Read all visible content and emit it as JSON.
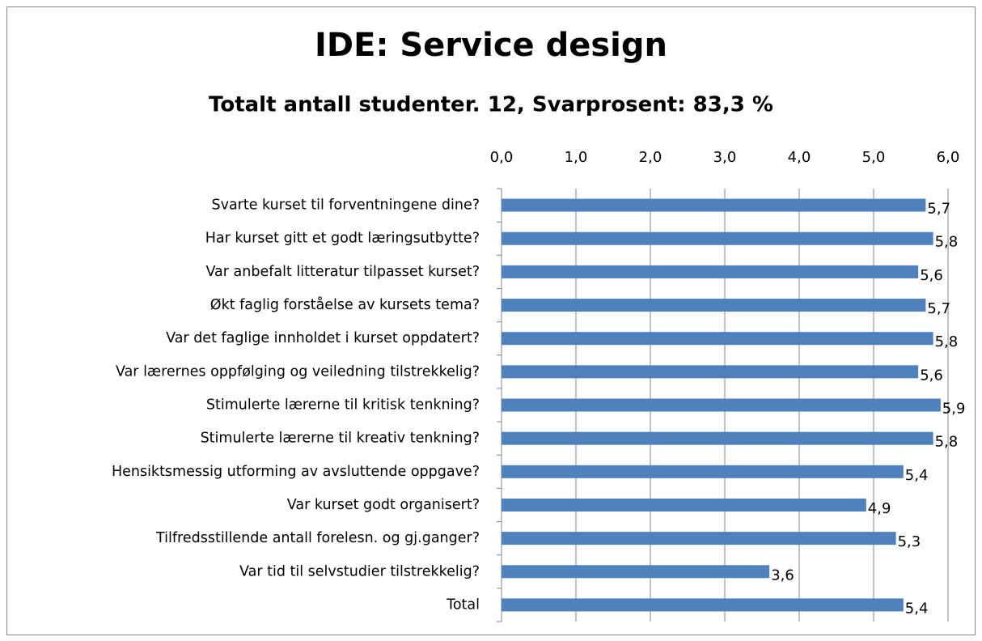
{
  "chart_data": {
    "type": "barh",
    "title": "IDE: Service design",
    "subtitle": "Totalt antall studenter. 12, Svarprosent: 83,3 %",
    "categories": [
      "Svarte kurset til forventningene dine?",
      "Har kurset gitt et godt læringsutbytte?",
      "Var anbefalt litteratur tilpasset kurset?",
      "Økt faglig forståelse av kursets tema?",
      "Var det faglige innholdet i kurset oppdatert?",
      "Var lærernes oppfølging og veiledning tilstrekkelig?",
      "Stimulerte lærerne til kritisk tenkning?",
      "Stimulerte lærerne til kreativ tenkning?",
      "Hensiktsmessig utforming av avsluttende oppgave?",
      "Var kurset godt organisert?",
      "Tilfredsstillende antall forelesn. og gj.ganger?",
      "Var tid til selvstudier tilstrekkelig?",
      "Total"
    ],
    "values": [
      5.7,
      5.8,
      5.6,
      5.7,
      5.8,
      5.6,
      5.9,
      5.8,
      5.4,
      4.9,
      5.3,
      3.6,
      5.4
    ],
    "value_labels": [
      "5,7",
      "5,8",
      "5,6",
      "5,7",
      "5,8",
      "5,6",
      "5,9",
      "5,8",
      "5,4",
      "4,9",
      "5,3",
      "3,6",
      "5,4"
    ],
    "color": "#4f81bd",
    "xlim": [
      0,
      6
    ],
    "xticks": [
      {
        "value": 0,
        "label": "0,0"
      },
      {
        "value": 1,
        "label": "1,0"
      },
      {
        "value": 2,
        "label": "2,0"
      },
      {
        "value": 3,
        "label": "3,0"
      },
      {
        "value": 4,
        "label": "4,0"
      },
      {
        "value": 5,
        "label": "5,0"
      },
      {
        "value": 6,
        "label": "6,0"
      }
    ],
    "grid": true
  }
}
